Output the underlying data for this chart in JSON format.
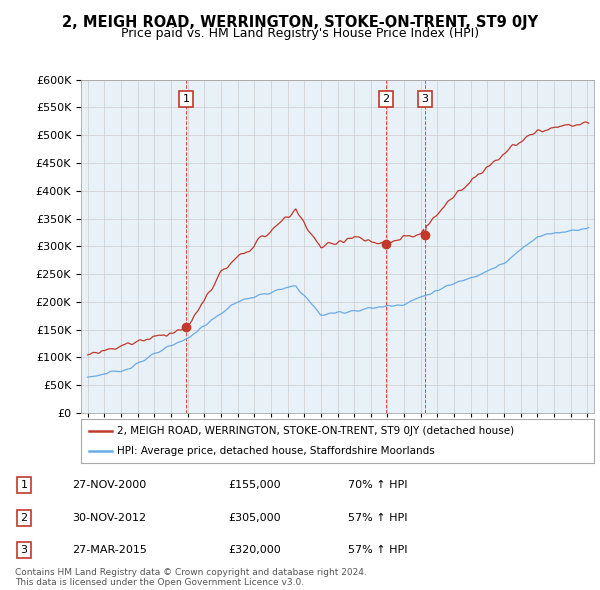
{
  "title": "2, MEIGH ROAD, WERRINGTON, STOKE-ON-TRENT, ST9 0JY",
  "subtitle": "Price paid vs. HM Land Registry's House Price Index (HPI)",
  "legend_line1": "2, MEIGH ROAD, WERRINGTON, STOKE-ON-TRENT, ST9 0JY (detached house)",
  "legend_line2": "HPI: Average price, detached house, Staffordshire Moorlands",
  "transactions": [
    {
      "num": 1,
      "date": "27-NOV-2000",
      "price": 155000,
      "hpi_pct": "70%",
      "x_year": 2000.92
    },
    {
      "num": 2,
      "date": "30-NOV-2012",
      "price": 305000,
      "hpi_pct": "57%",
      "x_year": 2012.92
    },
    {
      "num": 3,
      "date": "27-MAR-2015",
      "price": 320000,
      "hpi_pct": "57%",
      "x_year": 2015.25
    }
  ],
  "footer": "Contains HM Land Registry data © Crown copyright and database right 2024.\nThis data is licensed under the Open Government Licence v3.0.",
  "red_color": "#c0392b",
  "blue_color": "#6aabe8",
  "bg_color": "#e8f0f8",
  "ylim": [
    0,
    600000
  ],
  "xlim_start": 1994.6,
  "xlim_end": 2025.4
}
